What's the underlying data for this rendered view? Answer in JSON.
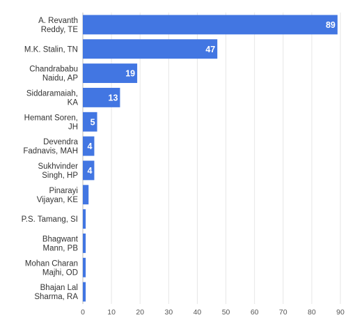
{
  "chart_data": {
    "type": "bar",
    "orientation": "horizontal",
    "categories": [
      [
        "A. Revanth",
        "Reddy, TE"
      ],
      [
        "M.K. Stalin, TN"
      ],
      [
        "Chandrababu",
        "Naidu, AP"
      ],
      [
        "Siddaramaiah,",
        "KA"
      ],
      [
        "Hemant Soren,",
        "JH"
      ],
      [
        "Devendra",
        "Fadnavis, MAH"
      ],
      [
        "Sukhvinder",
        "Singh, HP"
      ],
      [
        "Pinarayi",
        "Vijayan, KE"
      ],
      [
        "P.S. Tamang, SI"
      ],
      [
        "Bhagwant",
        "Mann, PB"
      ],
      [
        "Mohan Charan",
        "Majhi, OD"
      ],
      [
        "Bhajan Lal",
        "Sharma, RA"
      ]
    ],
    "values": [
      89,
      47,
      19,
      13,
      5,
      4,
      4,
      2,
      1,
      1,
      1,
      1
    ],
    "data_labels": [
      "89",
      "47",
      "19",
      "13",
      "5",
      "4",
      "4",
      "",
      "",
      "",
      "",
      ""
    ],
    "xticks": [
      0,
      10,
      20,
      30,
      40,
      50,
      60,
      70,
      80,
      90
    ],
    "xlim": [
      0,
      90
    ],
    "grid": "vertical",
    "title": "",
    "xlabel": "",
    "ylabel": "",
    "bar_color": "#4276e2"
  }
}
